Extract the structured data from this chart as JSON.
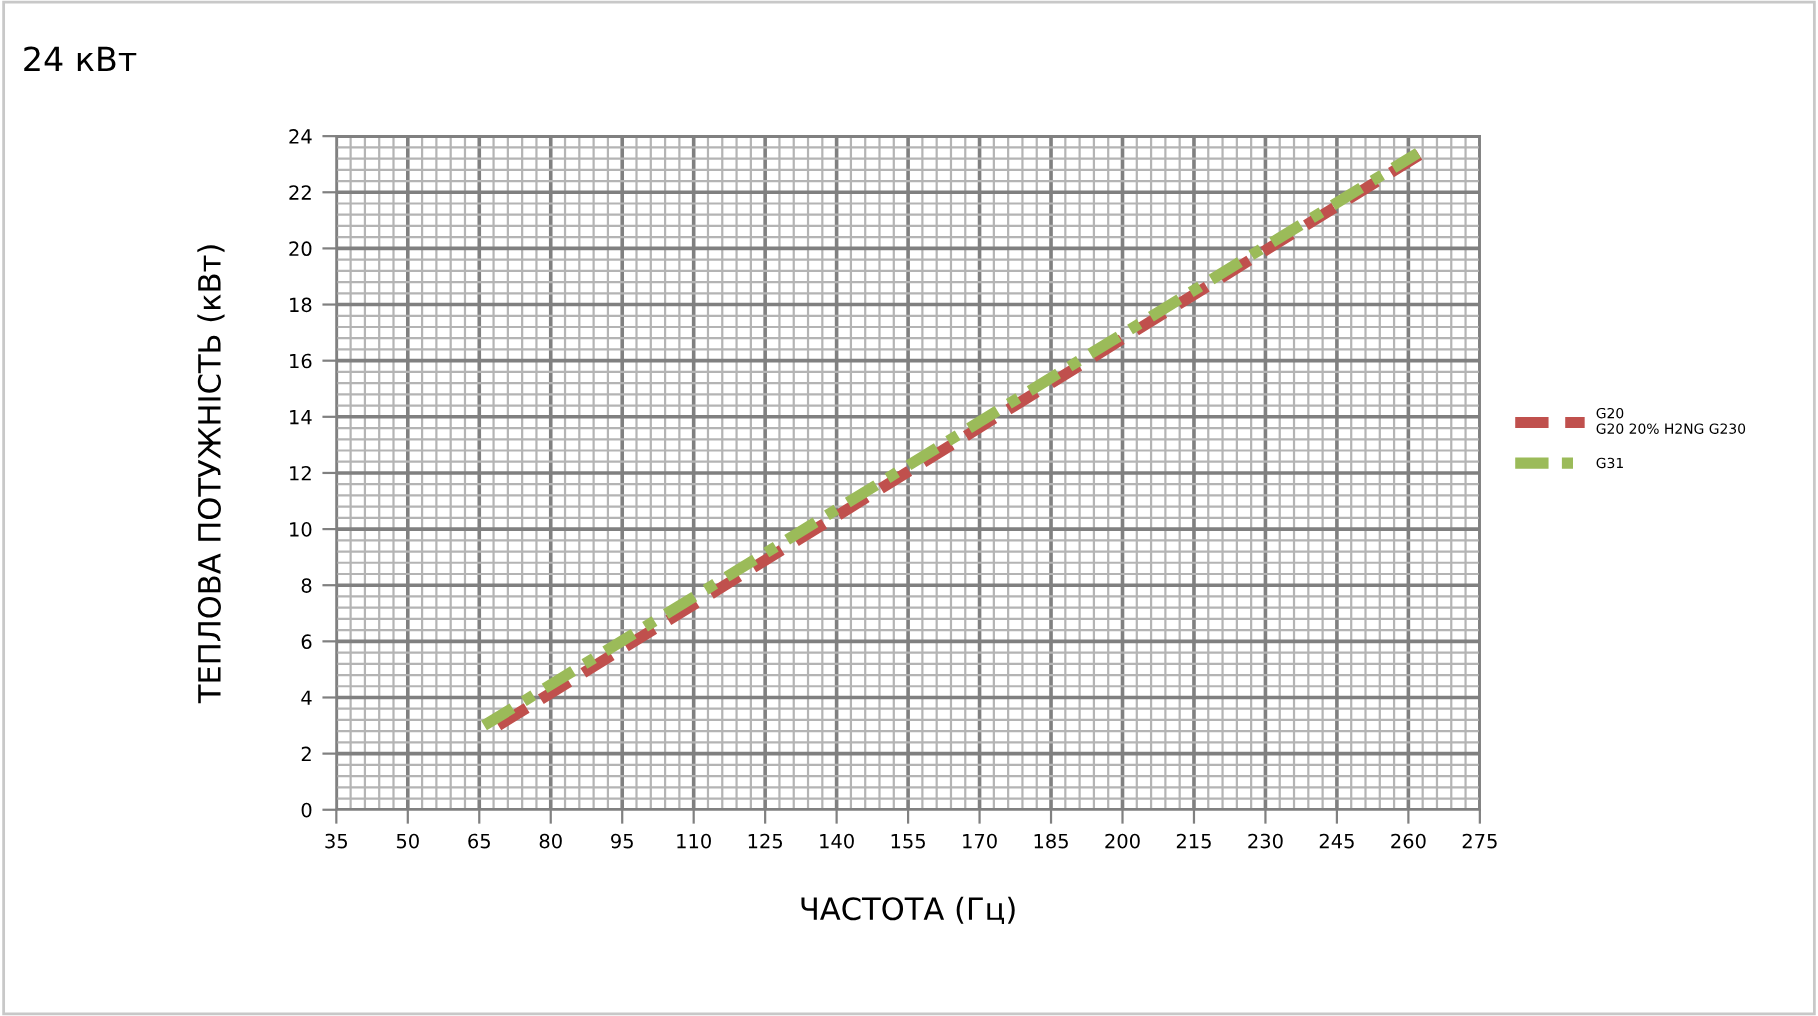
{
  "chart_data": {
    "type": "line",
    "title": "24 кВт",
    "xlabel": "ЧАСТОТА (Гц)",
    "ylabel": "ТЕПЛОВА ПОТУЖНІСТЬ (кВт)",
    "xlim": [
      35,
      275
    ],
    "xticks": [
      35,
      50,
      65,
      80,
      95,
      110,
      125,
      140,
      155,
      170,
      185,
      200,
      215,
      230,
      245,
      260,
      275
    ],
    "ylim": [
      0,
      24
    ],
    "yticks": [
      0,
      2,
      4,
      6,
      8,
      10,
      12,
      14,
      16,
      18,
      20,
      22,
      24
    ],
    "grid": true,
    "legend": "right",
    "marker": "none",
    "series": [
      {
        "name": "G20\nG20 20% H2NG G230",
        "color": "#c0504d",
        "line_style": "dashed",
        "x": [
          69,
          263
        ],
        "values": [
          3.0,
          23.4
        ]
      },
      {
        "name": "G31",
        "color": "#9bbb59",
        "line_style": "dashdot",
        "x": [
          66,
          262
        ],
        "values": [
          3.0,
          23.4
        ]
      }
    ]
  }
}
